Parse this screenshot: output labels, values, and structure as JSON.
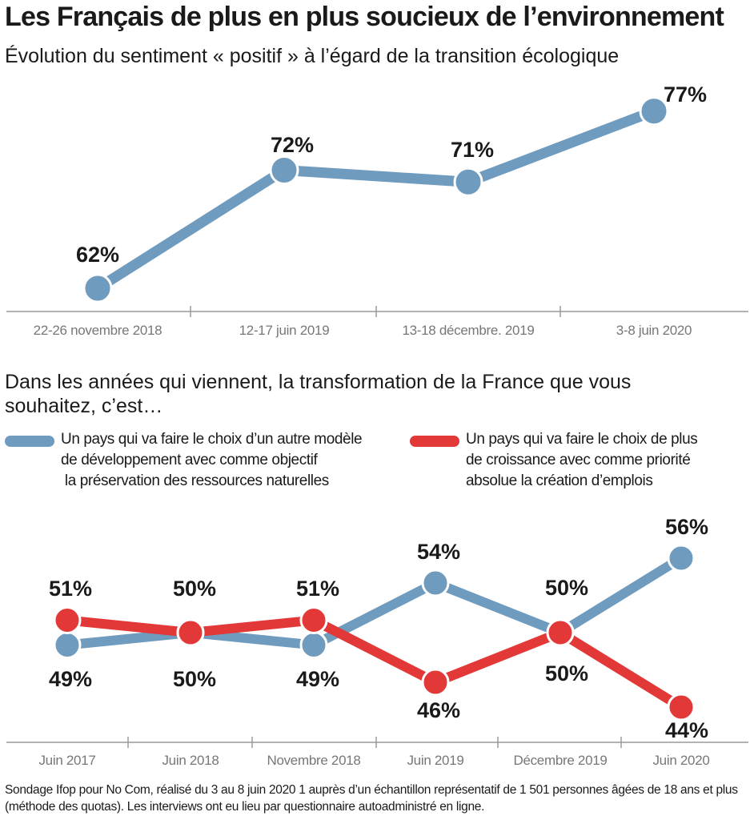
{
  "header": {
    "title": "Les Français de plus en plus soucieux de l’environnement"
  },
  "footnote": "Sondage Ifop pour No Com, réalisé du 3 au 8 juin 2020 1 auprès d’un échantillon représentatif de 1 501 personnes âgées de 18 ans et plus (méthode des quotas). Les interviews ont eu lieu par questionnaire autoadministré en ligne.",
  "colors": {
    "blue": "#6f9bbf",
    "red": "#e33838",
    "axis": "#9a9a9a"
  },
  "chart_data": [
    {
      "type": "line",
      "title": "Évolution du sentiment « positif » à l’égard de la transition écologique",
      "categories": [
        "22-26 novembre 2018",
        "12-17 juin 2019",
        "13-18 décembre. 2019",
        "3-8 juin 2020"
      ],
      "series": [
        {
          "values": [
            62,
            72,
            71,
            77
          ],
          "labels": [
            "62%",
            "72%",
            "71%",
            "77%"
          ],
          "color": "#6f9bbf"
        }
      ],
      "ylim": [
        60,
        78
      ],
      "grid": false,
      "legend": "none"
    },
    {
      "type": "line",
      "title": "Dans les années qui viennent, la transformation de la France que vous souhaitez, c’est…",
      "categories": [
        "Juin 2017",
        "Juin 2018",
        "Novembre 2018",
        "Juin 2019",
        "Décembre 2019",
        "Juin 2020"
      ],
      "series": [
        {
          "name": "Un pays qui va faire le choix d’un autre modèle de développement avec comme objectif la préservation des ressources naturelles",
          "name_lines": [
            "Un pays qui va faire le choix d’un autre modèle",
            "de développement avec comme objectif",
            " la préservation des ressources naturelles"
          ],
          "values": [
            49,
            50,
            49,
            54,
            50,
            56
          ],
          "labels": [
            "49%",
            "50%",
            "49%",
            "54%",
            "50%",
            "56%"
          ],
          "color": "#6f9bbf"
        },
        {
          "name": "Un pays qui va faire le choix de plus de croissance avec comme priorité absolue la création d’emplois",
          "name_lines": [
            "Un pays qui va faire le choix de plus",
            "de croissance avec comme priorité",
            "absolue la création d’emplois"
          ],
          "values": [
            51,
            50,
            51,
            46,
            50,
            44
          ],
          "labels": [
            "51%",
            "50%",
            "51%",
            "46%",
            "50%",
            "44%"
          ],
          "color": "#e33838"
        }
      ],
      "ylim": [
        43,
        57
      ],
      "grid": false,
      "legend": "top"
    }
  ]
}
